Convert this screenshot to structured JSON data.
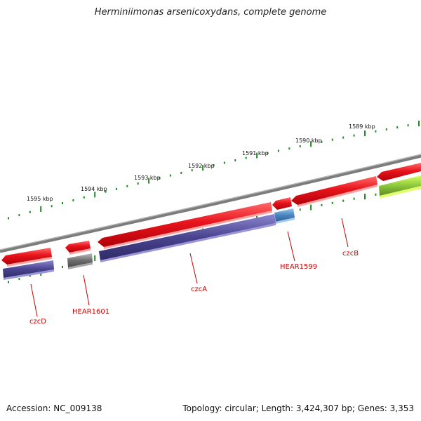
{
  "title": "Herminiimonas arsenicoxydans, complete genome",
  "footer": {
    "accession": "Accession: NC_009138",
    "topology": "Topology: circular; Length: 3,424,307 bp; Genes: 3,353"
  },
  "colors": {
    "forward_cds": "#e8141c",
    "reverse_cds": "#4a4490",
    "hypothetical": "#6e6e6e",
    "highlight": "#4a86c0",
    "other": "#8cc83c",
    "backbone": "#808080",
    "ticks": "#1f8a1f",
    "labels": "#cc0000"
  },
  "kbp_labels": [
    "1595 kbp",
    "1594 kbp",
    "1593 kbp",
    "1592 kbp",
    "1591 kbp",
    "1590 kbp",
    "1589 kbp"
  ],
  "genes": [
    {
      "name": "czcD"
    },
    {
      "name": "HEAR1601"
    },
    {
      "name": "czcA"
    },
    {
      "name": "HEAR1599"
    },
    {
      "name": "czcB"
    }
  ]
}
